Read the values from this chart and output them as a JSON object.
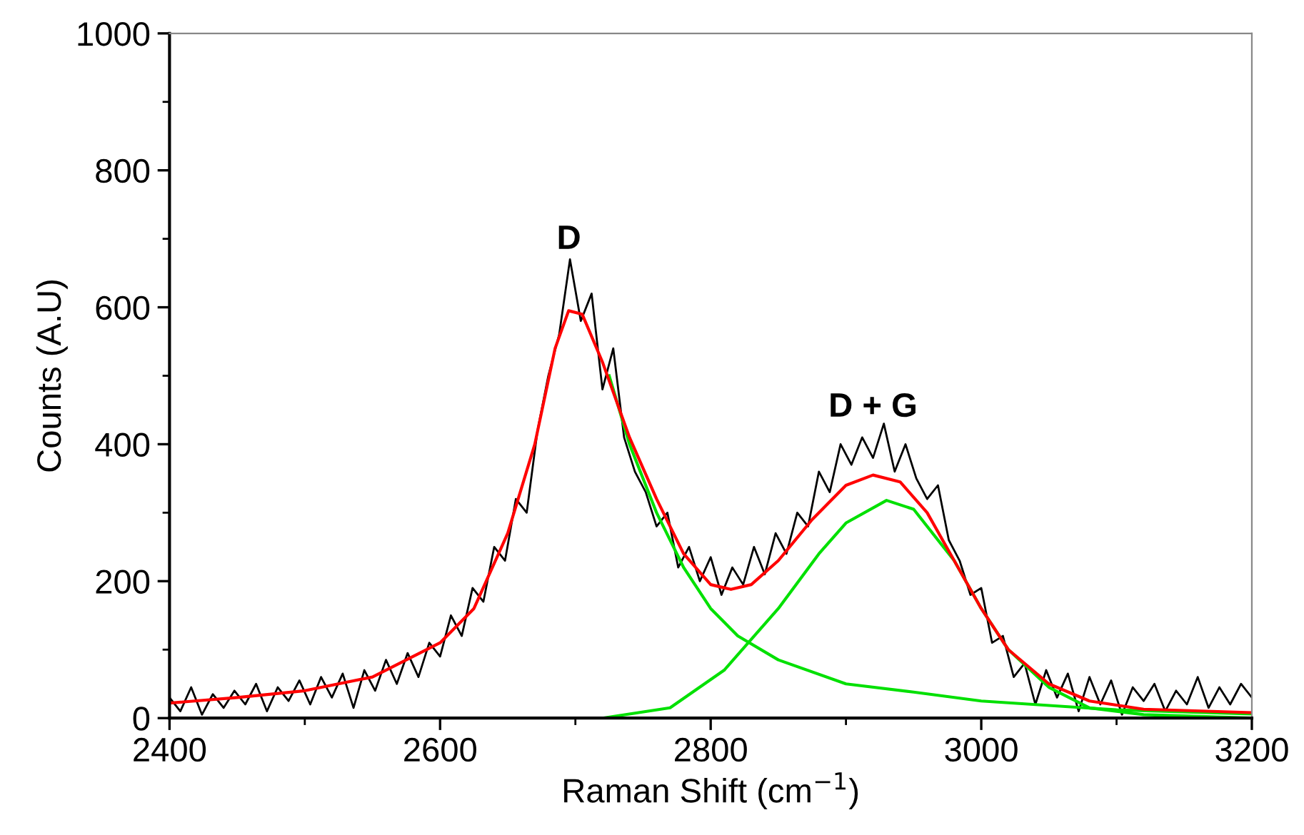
{
  "chart_data": {
    "type": "line",
    "xlabel": "Raman Shift (cm$^{−1}$)",
    "ylabel": "Counts (A.U)",
    "xlim": [
      2400,
      3200
    ],
    "xticks": [
      2400,
      2600,
      2800,
      3000,
      3200
    ],
    "ylim": [
      0,
      1000
    ],
    "yticks": [
      0,
      200,
      400,
      600,
      800,
      1000
    ],
    "grid": false,
    "legend": false,
    "annotations": [
      "D",
      "D + G"
    ],
    "series": [
      {
        "color": "#000000",
        "x": [
          2400,
          2408,
          2416,
          2424,
          2432,
          2440,
          2448,
          2456,
          2464,
          2472,
          2480,
          2488,
          2496,
          2504,
          2512,
          2520,
          2528,
          2536,
          2544,
          2552,
          2560,
          2568,
          2576,
          2584,
          2592,
          2600,
          2608,
          2616,
          2624,
          2632,
          2640,
          2648,
          2656,
          2664,
          2672,
          2680,
          2688,
          2696,
          2704,
          2712,
          2720,
          2728,
          2736,
          2744,
          2752,
          2760,
          2768,
          2776,
          2784,
          2792,
          2800,
          2808,
          2816,
          2824,
          2832,
          2840,
          2848,
          2856,
          2864,
          2872,
          2880,
          2888,
          2896,
          2904,
          2912,
          2920,
          2928,
          2936,
          2944,
          2952,
          2960,
          2968,
          2976,
          2984,
          2992,
          3000,
          3008,
          3016,
          3024,
          3032,
          3040,
          3048,
          3056,
          3064,
          3072,
          3080,
          3088,
          3096,
          3104,
          3112,
          3120,
          3128,
          3136,
          3144,
          3152,
          3160,
          3168,
          3176,
          3184,
          3192,
          3200
        ],
        "values": [
          30,
          10,
          45,
          5,
          35,
          15,
          40,
          20,
          50,
          10,
          45,
          25,
          55,
          20,
          60,
          30,
          65,
          15,
          70,
          40,
          85,
          50,
          95,
          60,
          110,
          90,
          150,
          120,
          190,
          170,
          250,
          230,
          320,
          300,
          420,
          500,
          560,
          670,
          580,
          620,
          480,
          540,
          410,
          360,
          330,
          280,
          300,
          220,
          250,
          200,
          235,
          180,
          220,
          195,
          250,
          210,
          270,
          240,
          300,
          280,
          360,
          330,
          400,
          370,
          410,
          380,
          430,
          360,
          400,
          350,
          320,
          340,
          260,
          230,
          180,
          190,
          110,
          120,
          60,
          80,
          20,
          70,
          30,
          65,
          10,
          60,
          20,
          55,
          5,
          45,
          25,
          50,
          10,
          40,
          20,
          60,
          15,
          45,
          20,
          50,
          30
        ]
      },
      {
        "color": "#00e000",
        "x": [
          2725,
          2740,
          2760,
          2780,
          2800,
          2820,
          2850,
          2900,
          2950,
          3000,
          3100,
          3200
        ],
        "values": [
          500,
          400,
          300,
          220,
          160,
          120,
          85,
          50,
          38,
          25,
          12,
          6
        ]
      },
      {
        "color": "#00e000",
        "x": [
          2720,
          2770,
          2810,
          2850,
          2880,
          2900,
          2930,
          2950,
          2980,
          3000,
          3020,
          3050,
          3080,
          3120,
          3200
        ],
        "values": [
          0,
          15,
          70,
          160,
          240,
          285,
          318,
          305,
          230,
          160,
          100,
          45,
          15,
          5,
          0
        ]
      },
      {
        "color": "#ff0000",
        "x": [
          2400,
          2450,
          2500,
          2550,
          2600,
          2625,
          2650,
          2670,
          2685,
          2695,
          2705,
          2720,
          2740,
          2760,
          2780,
          2800,
          2815,
          2830,
          2850,
          2875,
          2900,
          2920,
          2940,
          2960,
          2980,
          3000,
          3020,
          3050,
          3080,
          3120,
          3200
        ],
        "values": [
          22,
          30,
          40,
          60,
          110,
          160,
          270,
          400,
          540,
          595,
          590,
          520,
          410,
          320,
          240,
          195,
          188,
          195,
          230,
          290,
          340,
          355,
          345,
          300,
          230,
          160,
          100,
          50,
          25,
          13,
          8
        ]
      }
    ]
  }
}
